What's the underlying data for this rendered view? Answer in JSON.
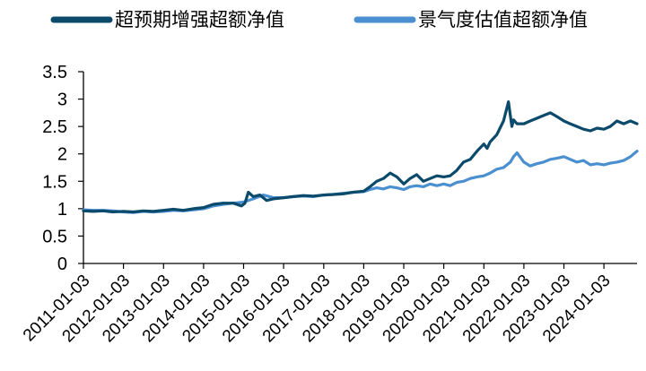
{
  "chart_data": {
    "type": "line",
    "ylim": [
      0,
      3.5
    ],
    "y_ticks": [
      "0",
      "0.5",
      "1",
      "1.5",
      "2",
      "2.5",
      "3",
      "3.5"
    ],
    "x_tick_labels": [
      "2011-01-03",
      "2012-01-03",
      "2013-01-03",
      "2014-01-03",
      "2015-01-03",
      "2016-01-03",
      "2017-01-03",
      "2018-01-03",
      "2019-01-03",
      "2020-01-03",
      "2021-01-03",
      "2022-01-03",
      "2023-01-03",
      "2024-01-03"
    ],
    "x_range": [
      "2011-01-03",
      "2024-10-31"
    ],
    "grid": false,
    "legend_position": "top",
    "series": [
      {
        "name": "超预期增强超额净值",
        "color": "#0b4a6b",
        "x": [
          "2011-01-03",
          "2011-04-01",
          "2011-07-01",
          "2011-10-01",
          "2012-01-03",
          "2012-04-01",
          "2012-07-01",
          "2012-10-01",
          "2013-01-03",
          "2013-04-01",
          "2013-07-01",
          "2013-10-01",
          "2014-01-03",
          "2014-04-01",
          "2014-07-01",
          "2014-10-01",
          "2014-12-15",
          "2015-01-15",
          "2015-02-15",
          "2015-04-01",
          "2015-06-01",
          "2015-08-01",
          "2015-10-01",
          "2016-01-03",
          "2016-04-01",
          "2016-07-01",
          "2016-10-01",
          "2017-01-03",
          "2017-04-01",
          "2017-07-01",
          "2017-10-01",
          "2018-01-03",
          "2018-03-01",
          "2018-05-01",
          "2018-07-01",
          "2018-09-01",
          "2018-11-01",
          "2019-01-03",
          "2019-03-01",
          "2019-05-01",
          "2019-07-01",
          "2019-09-01",
          "2019-11-01",
          "2020-01-03",
          "2020-03-01",
          "2020-05-01",
          "2020-07-01",
          "2020-09-01",
          "2020-11-01",
          "2021-01-03",
          "2021-02-01",
          "2021-03-01",
          "2021-05-01",
          "2021-07-01",
          "2021-08-15",
          "2021-09-01",
          "2021-09-15",
          "2021-10-01",
          "2021-11-01",
          "2022-01-03",
          "2022-03-01",
          "2022-05-01",
          "2022-07-01",
          "2022-09-01",
          "2022-11-01",
          "2023-01-03",
          "2023-03-01",
          "2023-05-01",
          "2023-07-01",
          "2023-09-01",
          "2023-11-01",
          "2024-01-03",
          "2024-03-01",
          "2024-05-01",
          "2024-07-01",
          "2024-09-01",
          "2024-10-31"
        ],
        "values": [
          0.96,
          0.95,
          0.96,
          0.94,
          0.95,
          0.94,
          0.96,
          0.95,
          0.97,
          0.99,
          0.97,
          1.0,
          1.02,
          1.08,
          1.1,
          1.1,
          1.05,
          1.1,
          1.3,
          1.22,
          1.25,
          1.15,
          1.18,
          1.2,
          1.22,
          1.24,
          1.23,
          1.25,
          1.26,
          1.27,
          1.3,
          1.32,
          1.4,
          1.5,
          1.55,
          1.65,
          1.58,
          1.45,
          1.55,
          1.62,
          1.5,
          1.55,
          1.6,
          1.58,
          1.6,
          1.7,
          1.85,
          1.9,
          2.05,
          2.18,
          2.1,
          2.22,
          2.35,
          2.6,
          2.95,
          2.7,
          2.5,
          2.62,
          2.55,
          2.55,
          2.6,
          2.65,
          2.7,
          2.75,
          2.68,
          2.6,
          2.55,
          2.5,
          2.45,
          2.42,
          2.47,
          2.45,
          2.5,
          2.6,
          2.55,
          2.6,
          2.55
        ]
      },
      {
        "name": "景气度估值超额净值",
        "color": "#4a8fd0",
        "x": [
          "2011-01-03",
          "2011-04-01",
          "2011-07-01",
          "2011-10-01",
          "2012-01-03",
          "2012-04-01",
          "2012-07-01",
          "2012-10-01",
          "2013-01-03",
          "2013-04-01",
          "2013-07-01",
          "2013-10-01",
          "2014-01-03",
          "2014-04-01",
          "2014-07-01",
          "2014-10-01",
          "2015-01-03",
          "2015-04-01",
          "2015-07-01",
          "2015-10-01",
          "2016-01-03",
          "2016-04-01",
          "2016-07-01",
          "2016-10-01",
          "2017-01-03",
          "2017-04-01",
          "2017-07-01",
          "2017-10-01",
          "2018-01-03",
          "2018-03-01",
          "2018-05-01",
          "2018-07-01",
          "2018-09-01",
          "2018-11-01",
          "2019-01-03",
          "2019-03-01",
          "2019-05-01",
          "2019-07-01",
          "2019-09-01",
          "2019-11-01",
          "2020-01-03",
          "2020-03-01",
          "2020-05-01",
          "2020-07-01",
          "2020-09-01",
          "2020-11-01",
          "2021-01-03",
          "2021-03-01",
          "2021-05-01",
          "2021-07-01",
          "2021-09-01",
          "2021-10-01",
          "2021-11-01",
          "2022-01-03",
          "2022-03-01",
          "2022-05-01",
          "2022-07-01",
          "2022-09-01",
          "2022-11-01",
          "2023-01-03",
          "2023-03-01",
          "2023-05-01",
          "2023-07-01",
          "2023-09-01",
          "2023-11-01",
          "2024-01-03",
          "2024-03-01",
          "2024-05-01",
          "2024-07-01",
          "2024-09-01",
          "2024-10-31"
        ],
        "values": [
          0.98,
          0.97,
          0.97,
          0.96,
          0.94,
          0.93,
          0.95,
          0.94,
          0.95,
          0.97,
          0.96,
          0.98,
          1.0,
          1.05,
          1.08,
          1.1,
          1.12,
          1.18,
          1.25,
          1.2,
          1.2,
          1.22,
          1.23,
          1.22,
          1.25,
          1.26,
          1.28,
          1.3,
          1.31,
          1.35,
          1.38,
          1.36,
          1.4,
          1.38,
          1.35,
          1.4,
          1.42,
          1.4,
          1.45,
          1.42,
          1.45,
          1.42,
          1.48,
          1.5,
          1.55,
          1.58,
          1.6,
          1.65,
          1.72,
          1.75,
          1.85,
          1.95,
          2.02,
          1.85,
          1.78,
          1.82,
          1.85,
          1.9,
          1.92,
          1.95,
          1.9,
          1.85,
          1.88,
          1.8,
          1.82,
          1.8,
          1.83,
          1.85,
          1.88,
          1.95,
          2.05
        ]
      }
    ]
  }
}
